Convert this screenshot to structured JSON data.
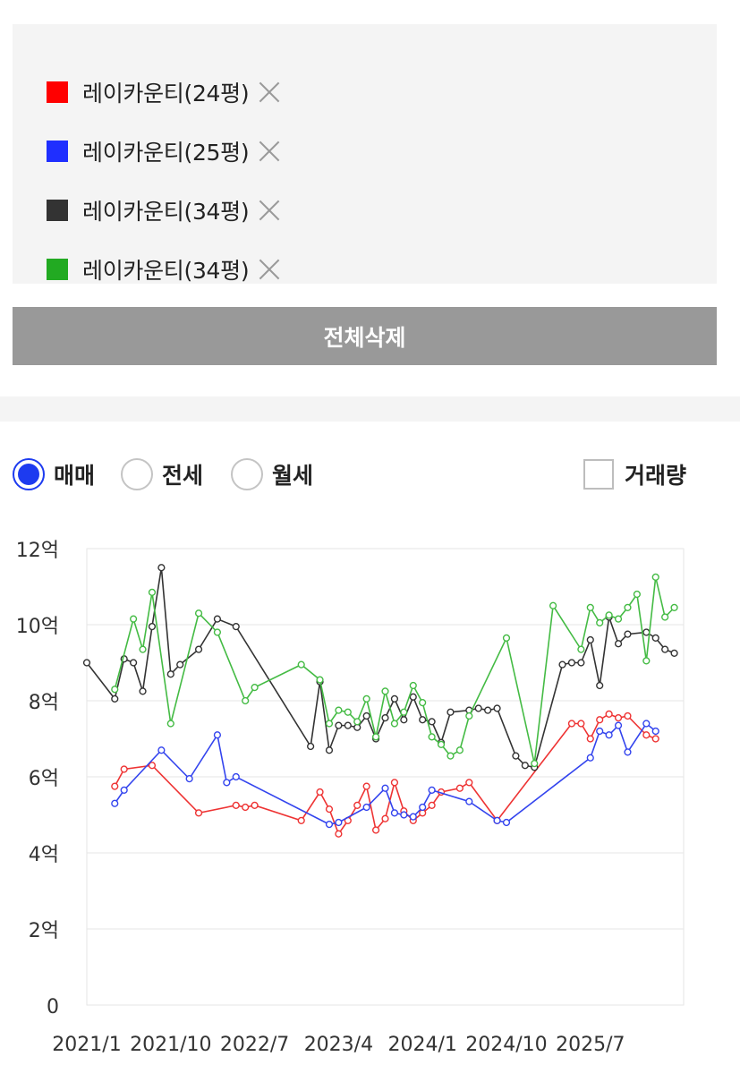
{
  "compare_list": {
    "items": [
      {
        "label": "레이카운티(24평)",
        "color": "#ff0000"
      },
      {
        "label": "레이카운티(25평)",
        "color": "#1f2fff"
      },
      {
        "label": "레이카운티(34평)",
        "color": "#333333"
      },
      {
        "label": "레이카운티(34평)",
        "color": "#22aa22"
      }
    ],
    "remove_icon": "close-icon"
  },
  "delete_all_label": "전체삭제",
  "trade_types": {
    "options": [
      {
        "label": "매매",
        "checked": true
      },
      {
        "label": "전세",
        "checked": false
      },
      {
        "label": "월세",
        "checked": false
      }
    ],
    "volume_label": "거래량",
    "volume_checked": false
  },
  "chart_data": {
    "type": "line",
    "title": "",
    "xlabel": "",
    "ylabel": "",
    "ylim": [
      0,
      12
    ],
    "y_ticks": [
      0,
      2,
      4,
      6,
      8,
      10,
      12
    ],
    "y_tick_labels": [
      "0",
      "2억",
      "4억",
      "6억",
      "8억",
      "10억",
      "12억"
    ],
    "xlim": [
      "2021-01",
      "2026-05"
    ],
    "x_ticks": [
      "2021-01",
      "2021-10",
      "2022-07",
      "2023-04",
      "2024-01",
      "2024-10",
      "2025-07"
    ],
    "x_tick_labels": [
      "2021/1",
      "2021/10",
      "2022/7",
      "2023/4",
      "2024/1",
      "2024/10",
      "2025/7"
    ],
    "grid": true,
    "series": [
      {
        "color": "#ee3333",
        "points": [
          [
            "2021-04",
            5.75
          ],
          [
            "2021-05",
            6.2
          ],
          [
            "2021-08",
            6.3
          ],
          [
            "2022-01",
            5.05
          ],
          [
            "2022-05",
            5.25
          ],
          [
            "2022-06",
            5.2
          ],
          [
            "2022-07",
            5.25
          ],
          [
            "2022-12",
            4.85
          ],
          [
            "2023-02",
            5.6
          ],
          [
            "2023-03",
            5.15
          ],
          [
            "2023-04",
            4.5
          ],
          [
            "2023-05",
            4.85
          ],
          [
            "2023-06",
            5.25
          ],
          [
            "2023-07",
            5.75
          ],
          [
            "2023-08",
            4.6
          ],
          [
            "2023-09",
            4.9
          ],
          [
            "2023-10",
            5.85
          ],
          [
            "2023-11",
            5.1
          ],
          [
            "2023-12",
            4.85
          ],
          [
            "2024-01",
            5.05
          ],
          [
            "2024-02",
            5.25
          ],
          [
            "2024-03",
            5.6
          ],
          [
            "2024-05",
            5.7
          ],
          [
            "2024-06",
            5.85
          ],
          [
            "2024-09",
            4.85
          ],
          [
            "2025-05",
            7.4
          ],
          [
            "2025-06",
            7.4
          ],
          [
            "2025-07",
            7.0
          ],
          [
            "2025-08",
            7.5
          ],
          [
            "2025-09",
            7.65
          ],
          [
            "2025-10",
            7.55
          ],
          [
            "2025-11",
            7.6
          ],
          [
            "2026-01",
            7.1
          ],
          [
            "2026-02",
            7.0
          ]
        ]
      },
      {
        "color": "#3344ee",
        "points": [
          [
            "2021-04",
            5.3
          ],
          [
            "2021-05",
            5.65
          ],
          [
            "2021-09",
            6.7
          ],
          [
            "2021-12",
            5.95
          ],
          [
            "2022-03",
            7.1
          ],
          [
            "2022-04",
            5.85
          ],
          [
            "2022-05",
            6.0
          ],
          [
            "2023-03",
            4.75
          ],
          [
            "2023-04",
            4.8
          ],
          [
            "2023-07",
            5.2
          ],
          [
            "2023-09",
            5.7
          ],
          [
            "2023-10",
            5.05
          ],
          [
            "2023-11",
            5.0
          ],
          [
            "2023-12",
            4.95
          ],
          [
            "2024-01",
            5.2
          ],
          [
            "2024-02",
            5.65
          ],
          [
            "2024-06",
            5.35
          ],
          [
            "2024-09",
            4.85
          ],
          [
            "2024-10",
            4.8
          ],
          [
            "2025-07",
            6.5
          ],
          [
            "2025-08",
            7.2
          ],
          [
            "2025-09",
            7.1
          ],
          [
            "2025-10",
            7.35
          ],
          [
            "2025-11",
            6.65
          ],
          [
            "2026-01",
            7.4
          ],
          [
            "2026-02",
            7.2
          ]
        ]
      },
      {
        "color": "#333333",
        "points": [
          [
            "2021-01",
            9.0
          ],
          [
            "2021-04",
            8.05
          ],
          [
            "2021-05",
            9.1
          ],
          [
            "2021-06",
            9.0
          ],
          [
            "2021-07",
            8.25
          ],
          [
            "2021-08",
            9.95
          ],
          [
            "2021-09",
            11.5
          ],
          [
            "2021-10",
            8.7
          ],
          [
            "2021-11",
            8.95
          ],
          [
            "2022-01",
            9.35
          ],
          [
            "2022-03",
            10.15
          ],
          [
            "2022-05",
            9.95
          ],
          [
            "2023-01",
            6.8
          ],
          [
            "2023-02",
            8.5
          ],
          [
            "2023-03",
            6.7
          ],
          [
            "2023-04",
            7.35
          ],
          [
            "2023-05",
            7.35
          ],
          [
            "2023-06",
            7.3
          ],
          [
            "2023-07",
            7.6
          ],
          [
            "2023-08",
            7.0
          ],
          [
            "2023-09",
            7.55
          ],
          [
            "2023-10",
            8.05
          ],
          [
            "2023-11",
            7.5
          ],
          [
            "2023-12",
            8.1
          ],
          [
            "2024-01",
            7.5
          ],
          [
            "2024-02",
            7.45
          ],
          [
            "2024-03",
            6.9
          ],
          [
            "2024-04",
            7.7
          ],
          [
            "2024-06",
            7.75
          ],
          [
            "2024-07",
            7.8
          ],
          [
            "2024-08",
            7.75
          ],
          [
            "2024-09",
            7.8
          ],
          [
            "2024-11",
            6.55
          ],
          [
            "2024-12",
            6.3
          ],
          [
            "2025-01",
            6.25
          ],
          [
            "2025-04",
            8.95
          ],
          [
            "2025-05",
            9.0
          ],
          [
            "2025-06",
            9.0
          ],
          [
            "2025-07",
            9.6
          ],
          [
            "2025-08",
            8.4
          ],
          [
            "2025-09",
            10.2
          ],
          [
            "2025-10",
            9.5
          ],
          [
            "2025-11",
            9.75
          ],
          [
            "2026-01",
            9.8
          ],
          [
            "2026-02",
            9.65
          ],
          [
            "2026-03",
            9.35
          ],
          [
            "2026-04",
            9.25
          ]
        ]
      },
      {
        "color": "#44bb44",
        "points": [
          [
            "2021-04",
            8.3
          ],
          [
            "2021-06",
            10.15
          ],
          [
            "2021-07",
            9.35
          ],
          [
            "2021-08",
            10.85
          ],
          [
            "2021-10",
            7.4
          ],
          [
            "2022-01",
            10.3
          ],
          [
            "2022-03",
            9.8
          ],
          [
            "2022-06",
            8.0
          ],
          [
            "2022-07",
            8.35
          ],
          [
            "2022-12",
            8.95
          ],
          [
            "2023-02",
            8.55
          ],
          [
            "2023-03",
            7.4
          ],
          [
            "2023-04",
            7.75
          ],
          [
            "2023-05",
            7.7
          ],
          [
            "2023-06",
            7.45
          ],
          [
            "2023-07",
            8.05
          ],
          [
            "2023-08",
            7.05
          ],
          [
            "2023-09",
            8.25
          ],
          [
            "2023-10",
            7.4
          ],
          [
            "2023-11",
            7.7
          ],
          [
            "2023-12",
            8.4
          ],
          [
            "2024-01",
            7.95
          ],
          [
            "2024-02",
            7.05
          ],
          [
            "2024-03",
            6.85
          ],
          [
            "2024-04",
            6.55
          ],
          [
            "2024-05",
            6.7
          ],
          [
            "2024-06",
            7.6
          ],
          [
            "2024-10",
            9.65
          ],
          [
            "2025-01",
            6.35
          ],
          [
            "2025-03",
            10.5
          ],
          [
            "2025-06",
            9.35
          ],
          [
            "2025-07",
            10.45
          ],
          [
            "2025-08",
            10.05
          ],
          [
            "2025-09",
            10.25
          ],
          [
            "2025-10",
            10.15
          ],
          [
            "2025-11",
            10.45
          ],
          [
            "2025-12",
            10.8
          ],
          [
            "2026-01",
            9.05
          ],
          [
            "2026-02",
            11.25
          ],
          [
            "2026-03",
            10.2
          ],
          [
            "2026-04",
            10.45
          ]
        ]
      }
    ]
  }
}
